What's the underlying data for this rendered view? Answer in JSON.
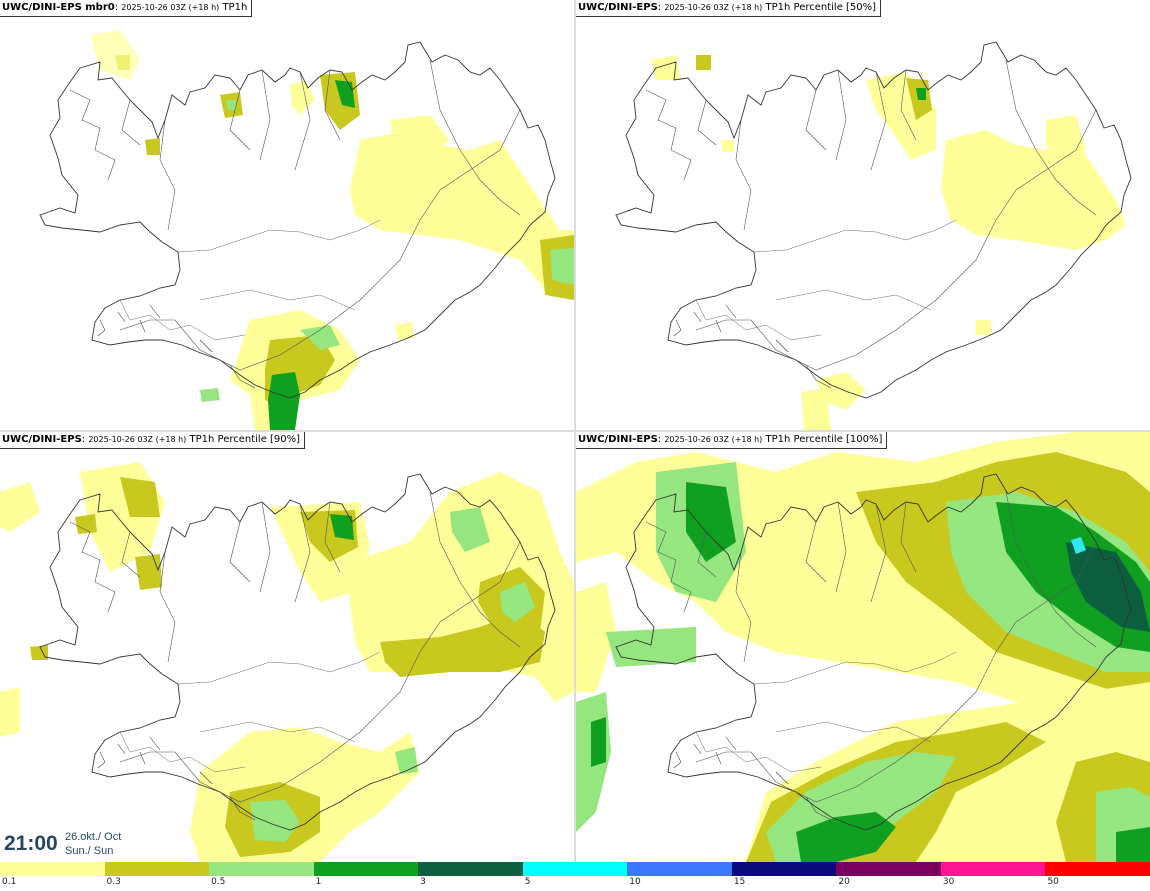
{
  "panels": [
    {
      "model": "UWC/DINI-EPS mbr0",
      "run": "2025-10-26 03Z (+18 h)",
      "field": "TP1h"
    },
    {
      "model": "UWC/DINI-EPS",
      "run": "2025-10-26 03Z (+18 h)",
      "field": "TP1h Percentile [50%]"
    },
    {
      "model": "UWC/DINI-EPS",
      "run": "2025-10-26 03Z (+18 h)",
      "field": "TP1h Percentile [90%]"
    },
    {
      "model": "UWC/DINI-EPS",
      "run": "2025-10-26 03Z (+18 h)",
      "field": "TP1h Percentile [100%]"
    }
  ],
  "valid_time": {
    "time": "21:00",
    "date": "26.okt./ Oct",
    "day": "Sun./ Sun"
  },
  "colorbar": {
    "labels": [
      "0.1",
      "0.3",
      "0.5",
      "1",
      "3",
      "5",
      "10",
      "15",
      "20",
      "30",
      "50"
    ],
    "colors": [
      "#ffff99",
      "#c8c81e",
      "#96e680",
      "#10a020",
      "#0c6040",
      "#00ffff",
      "#3a78ff",
      "#0a0a7a",
      "#7a0060",
      "#ff1493",
      "#ff0000"
    ]
  },
  "colors": {
    "light_yellow": "#ffff99",
    "olive": "#c8c81e",
    "light_green": "#96e680",
    "green": "#10a020",
    "dark_green": "#0c6040",
    "cyan": "#30e8f0",
    "coast": "#333333"
  }
}
